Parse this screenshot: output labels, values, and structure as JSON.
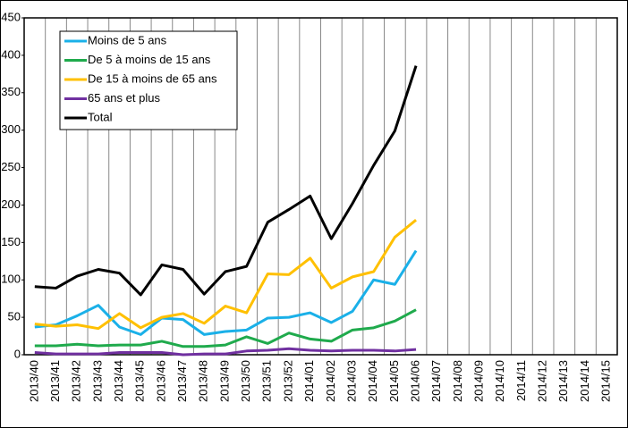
{
  "chart_data": {
    "type": "line",
    "categories": [
      "2013/40",
      "2013/41",
      "2013/42",
      "2013/43",
      "2013/44",
      "2013/45",
      "2013/46",
      "2013/47",
      "2013/48",
      "2013/49",
      "2013/50",
      "2013/51",
      "2013/52",
      "2014/01",
      "2014/02",
      "2014/03",
      "2014/04",
      "2014/05",
      "2014/06",
      "2014/07",
      "2014/08",
      "2014/09",
      "2014/10",
      "2014/11",
      "2014/12",
      "2014/13",
      "2014/14",
      "2014/15"
    ],
    "series": [
      {
        "name": "Moins de 5 ans",
        "color": "#1ab0e8",
        "values": [
          37,
          40,
          52,
          66,
          37,
          27,
          49,
          47,
          27,
          31,
          33,
          49,
          50,
          56,
          43,
          58,
          100,
          94,
          139,
          null,
          null,
          null,
          null,
          null,
          null,
          null,
          null,
          null
        ]
      },
      {
        "name": "De 5 à moins de 15 ans",
        "color": "#1faa4c",
        "values": [
          12,
          12,
          14,
          12,
          13,
          13,
          18,
          11,
          11,
          13,
          24,
          15,
          29,
          21,
          18,
          33,
          36,
          45,
          60,
          null,
          null,
          null,
          null,
          null,
          null,
          null,
          null,
          null
        ]
      },
      {
        "name": "De 15 à moins de 65 ans",
        "color": "#ffc000",
        "values": [
          41,
          38,
          40,
          35,
          55,
          36,
          50,
          55,
          42,
          65,
          56,
          108,
          107,
          129,
          89,
          104,
          111,
          157,
          180,
          null,
          null,
          null,
          null,
          null,
          null,
          null,
          null,
          null
        ]
      },
      {
        "name": "65 ans et plus",
        "color": "#7030a0",
        "values": [
          3,
          1,
          1,
          1,
          3,
          3,
          3,
          0,
          1,
          1,
          5,
          6,
          8,
          6,
          5,
          6,
          6,
          5,
          7,
          null,
          null,
          null,
          null,
          null,
          null,
          null,
          null,
          null
        ]
      },
      {
        "name": "Total",
        "color": "#000000",
        "values": [
          91,
          89,
          105,
          114,
          109,
          80,
          120,
          114,
          81,
          111,
          118,
          177,
          194,
          212,
          155,
          202,
          253,
          299,
          386,
          null,
          null,
          null,
          null,
          null,
          null,
          null,
          null,
          null
        ]
      }
    ],
    "ylim": [
      0,
      450
    ],
    "yticks": [
      0,
      50,
      100,
      150,
      200,
      250,
      300,
      350,
      400,
      450
    ]
  }
}
